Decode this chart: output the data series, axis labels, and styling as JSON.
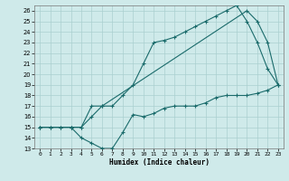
{
  "xlabel": "Humidex (Indice chaleur)",
  "bg_color": "#cfeaea",
  "grid_color": "#aacfcf",
  "line_color": "#1a6b6b",
  "xlim": [
    -0.5,
    23.5
  ],
  "ylim": [
    13,
    26.5
  ],
  "xticks": [
    0,
    1,
    2,
    3,
    4,
    5,
    6,
    7,
    8,
    9,
    10,
    11,
    12,
    13,
    14,
    15,
    16,
    17,
    18,
    19,
    20,
    21,
    22,
    23
  ],
  "yticks": [
    13,
    14,
    15,
    16,
    17,
    18,
    19,
    20,
    21,
    22,
    23,
    24,
    25,
    26
  ],
  "line1_x": [
    0,
    1,
    2,
    3,
    4,
    5,
    6,
    7,
    8,
    9,
    10,
    11,
    12,
    13,
    14,
    15,
    16,
    17,
    18,
    19,
    20,
    21,
    22,
    23
  ],
  "line1_y": [
    15,
    15,
    15,
    15,
    14,
    13.5,
    13,
    13,
    14.5,
    16.2,
    16,
    16.3,
    16.8,
    17,
    17,
    17,
    17.3,
    17.8,
    18,
    18,
    18,
    18.2,
    18.5,
    19
  ],
  "line2_x": [
    0,
    1,
    2,
    3,
    4,
    5,
    6,
    7,
    8,
    9,
    10,
    11,
    12,
    13,
    14,
    15,
    16,
    17,
    18,
    19,
    20,
    21,
    22,
    23
  ],
  "line2_y": [
    15,
    15,
    15,
    15,
    15,
    16,
    17,
    17,
    18,
    19,
    21,
    23,
    23.2,
    23.5,
    24,
    24.5,
    25,
    25.5,
    26,
    26.5,
    25,
    23,
    20.5,
    19
  ],
  "line3_x": [
    0,
    3,
    4,
    5,
    6,
    20,
    21,
    22,
    23
  ],
  "line3_y": [
    15,
    15,
    15,
    17,
    17,
    26,
    25,
    23,
    19
  ]
}
